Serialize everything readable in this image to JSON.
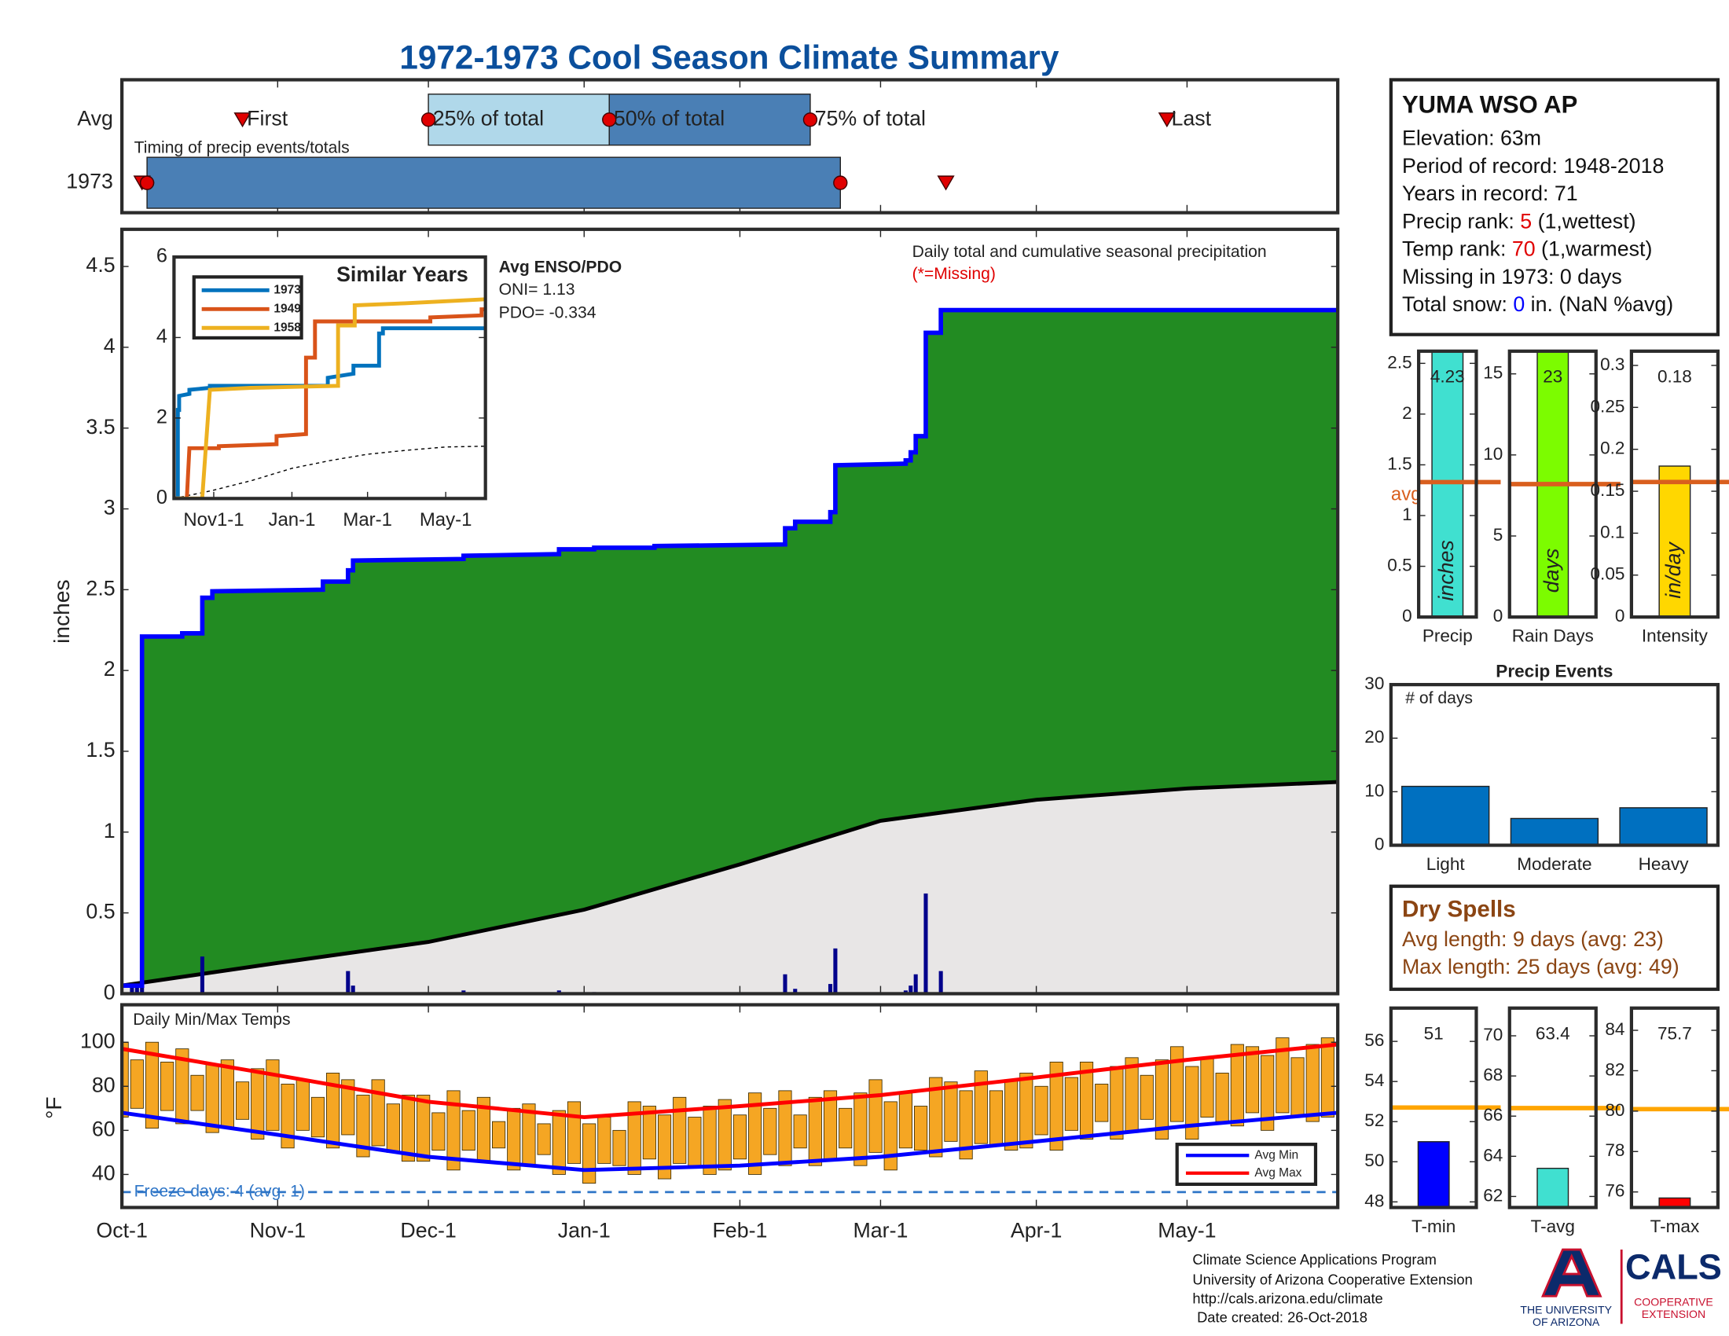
{
  "title": "1972-1973 Cool Season Climate Summary",
  "chart_data": [
    {
      "type": "timeline",
      "title": "Timing of precip events/totals",
      "xlim": [
        0,
        242
      ],
      "xticks": [
        31,
        61,
        92,
        123,
        151,
        182,
        212
      ],
      "marker_labels": [
        "First",
        "25% of total",
        "50% of total",
        "75% of total",
        "Last"
      ],
      "marker_color": "#e00000",
      "rows": [
        {
          "name": "Avg",
          "first": 24,
          "p25": 61,
          "p50": 97,
          "p75": 137,
          "last": 208,
          "colors": [
            "#b0d8ea",
            "#4a7fb5"
          ]
        },
        {
          "name": "1973",
          "first": 4,
          "p25": 5,
          "p50": 5,
          "p75": 143,
          "last": 164,
          "colors": [
            "#4a7fb5",
            "#4a7fb5"
          ]
        }
      ]
    },
    {
      "type": "step_area",
      "title": "Daily total and cumulative seasonal precipitation",
      "subtitle": "(*=Missing)",
      "ylabel": "inches",
      "xlim": [
        0,
        242
      ],
      "ylim": [
        0,
        4.73
      ],
      "xticks": [
        31,
        61,
        92,
        123,
        151,
        182,
        212
      ],
      "yticks": [
        0,
        0.5,
        1,
        1.5,
        2,
        2.5,
        3,
        3.5,
        4,
        4.5
      ],
      "cumulative": {
        "color": "#0000ff",
        "fill": "#228b22",
        "x": [
          0,
          4,
          4,
          12,
          12,
          16,
          16,
          18,
          18,
          40,
          40,
          45,
          45,
          46,
          46,
          68,
          68,
          87,
          87,
          94,
          94,
          106,
          106,
          132,
          132,
          134,
          134,
          141,
          141,
          142,
          142,
          156,
          156,
          157,
          157,
          158,
          158,
          160,
          160,
          163,
          163,
          242
        ],
        "values": [
          0.05,
          0.05,
          2.21,
          2.21,
          2.23,
          2.23,
          2.45,
          2.45,
          2.49,
          2.5,
          2.55,
          2.55,
          2.62,
          2.62,
          2.68,
          2.69,
          2.71,
          2.72,
          2.75,
          2.75,
          2.76,
          2.76,
          2.77,
          2.78,
          2.88,
          2.88,
          2.92,
          2.92,
          2.98,
          2.98,
          3.27,
          3.28,
          3.3,
          3.3,
          3.35,
          3.35,
          3.45,
          3.45,
          4.09,
          4.09,
          4.23,
          4.23
        ]
      },
      "average": {
        "color": "#000000",
        "fill": "#e8e6e6",
        "x": [
          0,
          31,
          61,
          92,
          123,
          151,
          182,
          212,
          242
        ],
        "values": [
          0.05,
          0.19,
          0.32,
          0.52,
          0.8,
          1.07,
          1.2,
          1.27,
          1.31
        ]
      },
      "daily": {
        "color": "#00008b",
        "x": [
          2,
          3,
          4,
          16,
          45,
          46,
          68,
          87,
          94,
          132,
          134,
          141,
          142,
          156,
          157,
          158,
          160,
          163
        ],
        "values": [
          0.04,
          0.05,
          2.16,
          0.23,
          0.14,
          0.05,
          0.02,
          0.02,
          0.01,
          0.12,
          0.03,
          0.06,
          0.28,
          0.02,
          0.05,
          0.12,
          0.62,
          0.14
        ]
      },
      "enso": {
        "title": "Avg ENSO/PDO",
        "lines": [
          "ONI= 1.13",
          "PDO= -0.334"
        ]
      }
    },
    {
      "type": "line",
      "title": "Similar Years",
      "xlim": [
        0,
        243
      ],
      "ylim": [
        0,
        6
      ],
      "yticks": [
        0,
        2,
        4,
        6
      ],
      "xticks": [
        {
          "value": 31,
          "label": "Nov1-1"
        },
        {
          "value": 92,
          "label": "Jan-1"
        },
        {
          "value": 151,
          "label": "Mar-1"
        },
        {
          "value": 212,
          "label": "May-1"
        }
      ],
      "series": [
        {
          "name": "1973",
          "color": "#0072bd",
          "x": [
            0,
            3,
            3,
            4,
            4,
            12,
            12,
            28,
            28,
            120,
            120,
            140,
            140,
            160,
            160,
            163,
            163,
            243
          ],
          "values": [
            0,
            0,
            2.2,
            2.2,
            2.55,
            2.6,
            2.7,
            2.75,
            2.8,
            2.8,
            3.0,
            3.1,
            3.3,
            3.3,
            4.1,
            4.1,
            4.23,
            4.23
          ]
        },
        {
          "name": "1949",
          "color": "#d95319",
          "x": [
            0,
            10,
            12,
            35,
            35,
            80,
            80,
            103,
            103,
            110,
            110,
            200,
            200,
            240,
            240,
            243
          ],
          "values": [
            0,
            0,
            1.25,
            1.25,
            1.3,
            1.35,
            1.55,
            1.6,
            3.5,
            3.5,
            4.4,
            4.4,
            4.5,
            4.55,
            4.7,
            4.7
          ]
        },
        {
          "name": "1958",
          "color": "#edb120",
          "x": [
            0,
            22,
            28,
            60,
            128,
            128,
            141,
            141,
            180,
            243
          ],
          "values": [
            0,
            0,
            2.7,
            2.75,
            2.8,
            4.3,
            4.3,
            4.8,
            4.85,
            4.95
          ]
        }
      ],
      "average": {
        "color": "#000000",
        "x": [
          0,
          30,
          61,
          92,
          123,
          151,
          182,
          212,
          243
        ],
        "values": [
          0,
          0.2,
          0.45,
          0.75,
          0.95,
          1.1,
          1.2,
          1.28,
          1.3
        ]
      }
    },
    {
      "type": "range_bar",
      "title": "Daily Min/Max Temps",
      "ylabel": "°F",
      "xlim": [
        0,
        242
      ],
      "ylim": [
        25,
        117
      ],
      "yticks": [
        40,
        60,
        80,
        100
      ],
      "xticks": [
        {
          "value": 0,
          "label": "Oct-1"
        },
        {
          "value": 31,
          "label": "Nov-1"
        },
        {
          "value": 61,
          "label": "Dec-1"
        },
        {
          "value": 92,
          "label": "Jan-1"
        },
        {
          "value": 123,
          "label": "Feb-1"
        },
        {
          "value": 151,
          "label": "Mar-1"
        },
        {
          "value": 182,
          "label": "Apr-1"
        },
        {
          "value": 212,
          "label": "May-1"
        }
      ],
      "color": "#f5a623",
      "legend": "lower right",
      "x": [
        0,
        3,
        6,
        9,
        12,
        15,
        18,
        21,
        24,
        27,
        30,
        33,
        36,
        39,
        42,
        45,
        48,
        51,
        54,
        57,
        60,
        63,
        66,
        69,
        72,
        75,
        78,
        81,
        84,
        87,
        90,
        93,
        96,
        99,
        102,
        105,
        108,
        111,
        114,
        117,
        120,
        123,
        126,
        129,
        132,
        135,
        138,
        141,
        144,
        147,
        150,
        153,
        156,
        159,
        162,
        165,
        168,
        171,
        174,
        177,
        180,
        183,
        186,
        189,
        192,
        195,
        198,
        201,
        204,
        207,
        210,
        213,
        216,
        219,
        222,
        225,
        228,
        231,
        234,
        237,
        240
      ],
      "max": [
        100,
        92,
        100,
        91,
        97,
        85,
        90,
        92,
        82,
        88,
        92,
        81,
        83,
        75,
        86,
        83,
        76,
        83,
        72,
        76,
        76,
        68,
        78,
        69,
        75,
        64,
        70,
        72,
        63,
        69,
        73,
        63,
        66,
        60,
        73,
        71,
        67,
        75,
        66,
        71,
        74,
        67,
        77,
        70,
        78,
        67,
        75,
        78,
        70,
        77,
        83,
        73,
        77,
        71,
        84,
        82,
        78,
        87,
        78,
        83,
        86,
        80,
        91,
        84,
        91,
        81,
        89,
        93,
        85,
        92,
        98,
        89,
        93,
        86,
        99,
        98,
        94,
        102,
        93,
        99,
        102
      ],
      "min": [
        66,
        70,
        61,
        69,
        63,
        69,
        59,
        61,
        65,
        56,
        60,
        52,
        60,
        57,
        52,
        58,
        48,
        53,
        50,
        46,
        46,
        51,
        42,
        51,
        46,
        52,
        42,
        44,
        49,
        40,
        45,
        36,
        45,
        44,
        40,
        47,
        38,
        45,
        44,
        40,
        42,
        47,
        40,
        49,
        44,
        52,
        44,
        47,
        52,
        44,
        50,
        42,
        52,
        51,
        48,
        55,
        47,
        54,
        53,
        51,
        52,
        58,
        51,
        60,
        56,
        64,
        56,
        59,
        65,
        56,
        64,
        56,
        66,
        64,
        62,
        68,
        60,
        68,
        66,
        64,
        66
      ],
      "series": [
        {
          "name": "Avg Min",
          "color": "#0000ff",
          "x": [
            0,
            31,
            61,
            92,
            123,
            151,
            182,
            212,
            242
          ],
          "values": [
            68,
            58,
            48,
            42,
            44,
            48,
            55,
            62,
            68
          ]
        },
        {
          "name": "Avg Max",
          "color": "#ff0000",
          "x": [
            0,
            31,
            61,
            92,
            123,
            151,
            182,
            212,
            242
          ],
          "values": [
            97,
            85,
            73,
            66,
            71,
            76,
            84,
            92,
            99
          ]
        }
      ],
      "freeze": {
        "value": 32,
        "label": "Freeze days: 4 (avg. 1)",
        "color": "#2e75c7"
      }
    },
    {
      "type": "single_bar",
      "label": "Precip",
      "value": 4.23,
      "avg": 1.33,
      "avg_label": "avg",
      "unit_label": "inches",
      "color": "#40e0d0",
      "avg_color": "#d95f1e",
      "ylim": [
        0,
        2.62
      ],
      "yticks": [
        0,
        0.5,
        1,
        1.5,
        2,
        2.5
      ]
    },
    {
      "type": "single_bar",
      "label": "Rain Days",
      "value": 23,
      "avg": 8.2,
      "unit_label": "days",
      "color": "#7cfc00",
      "avg_color": "#d95f1e",
      "ylim": [
        0,
        16.4
      ],
      "yticks": [
        0,
        5,
        10,
        15
      ]
    },
    {
      "type": "single_bar",
      "label": "Intensity",
      "value": 0.18,
      "avg": 0.161,
      "unit_label": "in/day",
      "color": "#ffd700",
      "avg_color": "#d95f1e",
      "ylim": [
        0,
        0.317
      ],
      "yticks": [
        0,
        0.05,
        0.1,
        0.15,
        0.2,
        0.25,
        0.3
      ]
    },
    {
      "type": "bar",
      "title": "Precip Events",
      "annotation": "# of days",
      "categories": [
        "Light",
        "Moderate",
        "Heavy"
      ],
      "values": [
        11,
        5,
        7
      ],
      "color": "#0070c0",
      "ylim": [
        0,
        30
      ],
      "yticks": [
        0,
        10,
        20,
        30
      ]
    },
    {
      "type": "single_bar",
      "label": "T-min",
      "value": 51,
      "avg": 52.7,
      "color": "#0000ff",
      "avg_color": "#ffa500",
      "ylim": [
        47.72,
        57.66
      ],
      "yticks": [
        48,
        50,
        52,
        54,
        56
      ]
    },
    {
      "type": "single_bar",
      "label": "T-avg",
      "value": 63.4,
      "avg": 66.4,
      "color": "#40e0d0",
      "avg_color": "#ffa500",
      "ylim": [
        61.45,
        71.38
      ],
      "yticks": [
        62,
        64,
        66,
        68,
        70
      ]
    },
    {
      "type": "single_bar",
      "label": "T-max",
      "value": 75.7,
      "avg": 80.1,
      "color": "#ff0000",
      "avg_color": "#ffa500",
      "ylim": [
        75.23,
        85.1
      ],
      "yticks": [
        76,
        78,
        80,
        82,
        84
      ]
    }
  ],
  "station": {
    "name": "YUMA WSO AP",
    "lines": [
      [
        "Elevation: 63m"
      ],
      [
        "Period of record: 1948-2018"
      ],
      [
        "Years in record: 71"
      ],
      [
        "Precip rank: ",
        {
          "text": "5",
          "color": "#e00000"
        },
        " (1,wettest)"
      ],
      [
        "Temp rank: ",
        {
          "text": "70",
          "color": "#e00000"
        },
        " (1,warmest)"
      ],
      [
        "Missing in 1973: 0 days"
      ],
      [
        "Total snow: ",
        {
          "text": "0",
          "color": "#0000ff"
        },
        " in. (NaN %avg)"
      ]
    ]
  },
  "dry_spells": {
    "title": "Dry Spells",
    "color": "#8b4513",
    "lines": [
      "Avg length: 9 days (avg: 23)",
      "Max length: 25 days (avg: 49)"
    ]
  },
  "footer": {
    "lines": [
      "Climate Science Applications Program",
      "University of Arizona Cooperative Extension",
      "http://cals.arizona.edu/climate",
      "Date created: 26-Oct-2018"
    ]
  },
  "logo": {
    "ua": [
      "THE UNIVERSITY",
      "OF ARIZONA"
    ],
    "cals": "CALS",
    "coop": [
      "COOPERATIVE",
      "EXTENSION"
    ]
  }
}
